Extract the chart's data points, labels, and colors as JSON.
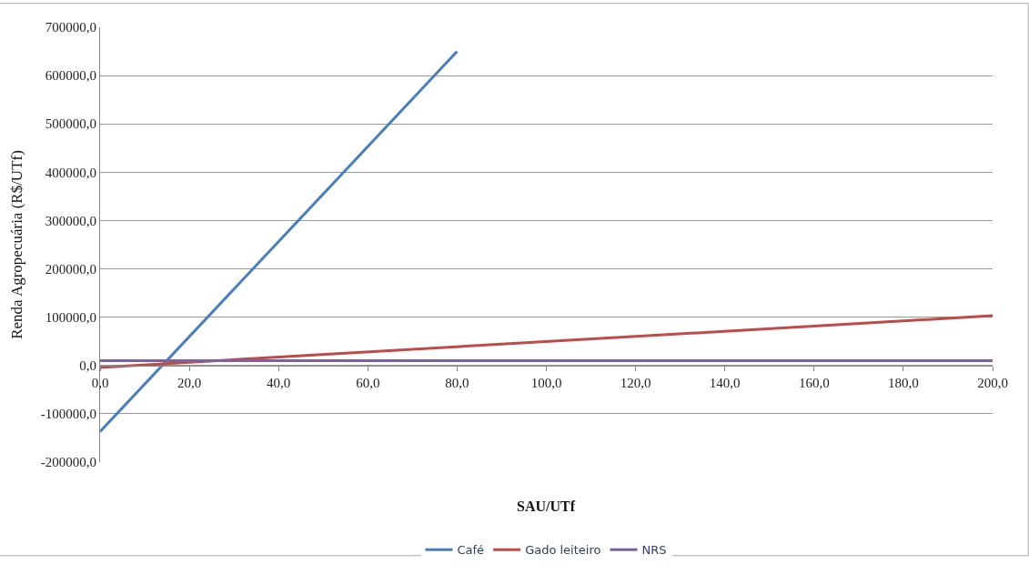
{
  "chart_data": {
    "type": "line",
    "xlabel": "SAU/UTf",
    "ylabel": "Renda Agropecuária (R$/UTf)",
    "series": [
      {
        "name": "Café",
        "color": "#4a7ebb",
        "x": [
          0,
          80
        ],
        "values": [
          -137000,
          650000
        ]
      },
      {
        "name": "Gado leiteiro",
        "color": "#be4b48",
        "x": [
          0,
          200
        ],
        "values": [
          -4000,
          103000
        ]
      },
      {
        "name": "NRS",
        "color": "#7d60a0",
        "x": [
          0,
          200
        ],
        "values": [
          10000,
          10000
        ]
      }
    ],
    "xlim": [
      0,
      200
    ],
    "ylim": [
      -200000,
      700000
    ],
    "xticks": [
      {
        "value": 0,
        "label": "0,0"
      },
      {
        "value": 20,
        "label": "20,0"
      },
      {
        "value": 40,
        "label": "40,0"
      },
      {
        "value": 60,
        "label": "60,0"
      },
      {
        "value": 80,
        "label": "80,0"
      },
      {
        "value": 100,
        "label": "100,0"
      },
      {
        "value": 120,
        "label": "120,0"
      },
      {
        "value": 140,
        "label": "140,0"
      },
      {
        "value": 160,
        "label": "160,0"
      },
      {
        "value": 180,
        "label": "180,0"
      },
      {
        "value": 200,
        "label": "200,0"
      }
    ],
    "yticks": [
      {
        "value": -200000,
        "label": "-200000,0"
      },
      {
        "value": -100000,
        "label": "-100000,0"
      },
      {
        "value": 0,
        "label": "0,0"
      },
      {
        "value": 100000,
        "label": "100000,0"
      },
      {
        "value": 200000,
        "label": "200000,0"
      },
      {
        "value": 300000,
        "label": "300000,0"
      },
      {
        "value": 400000,
        "label": "400000,0"
      },
      {
        "value": 500000,
        "label": "500000,0"
      },
      {
        "value": 600000,
        "label": "600000,0"
      },
      {
        "value": 700000,
        "label": "700000,0"
      }
    ],
    "grid": "y",
    "legend": "bottom",
    "marker": "none",
    "line_style": "solid"
  }
}
